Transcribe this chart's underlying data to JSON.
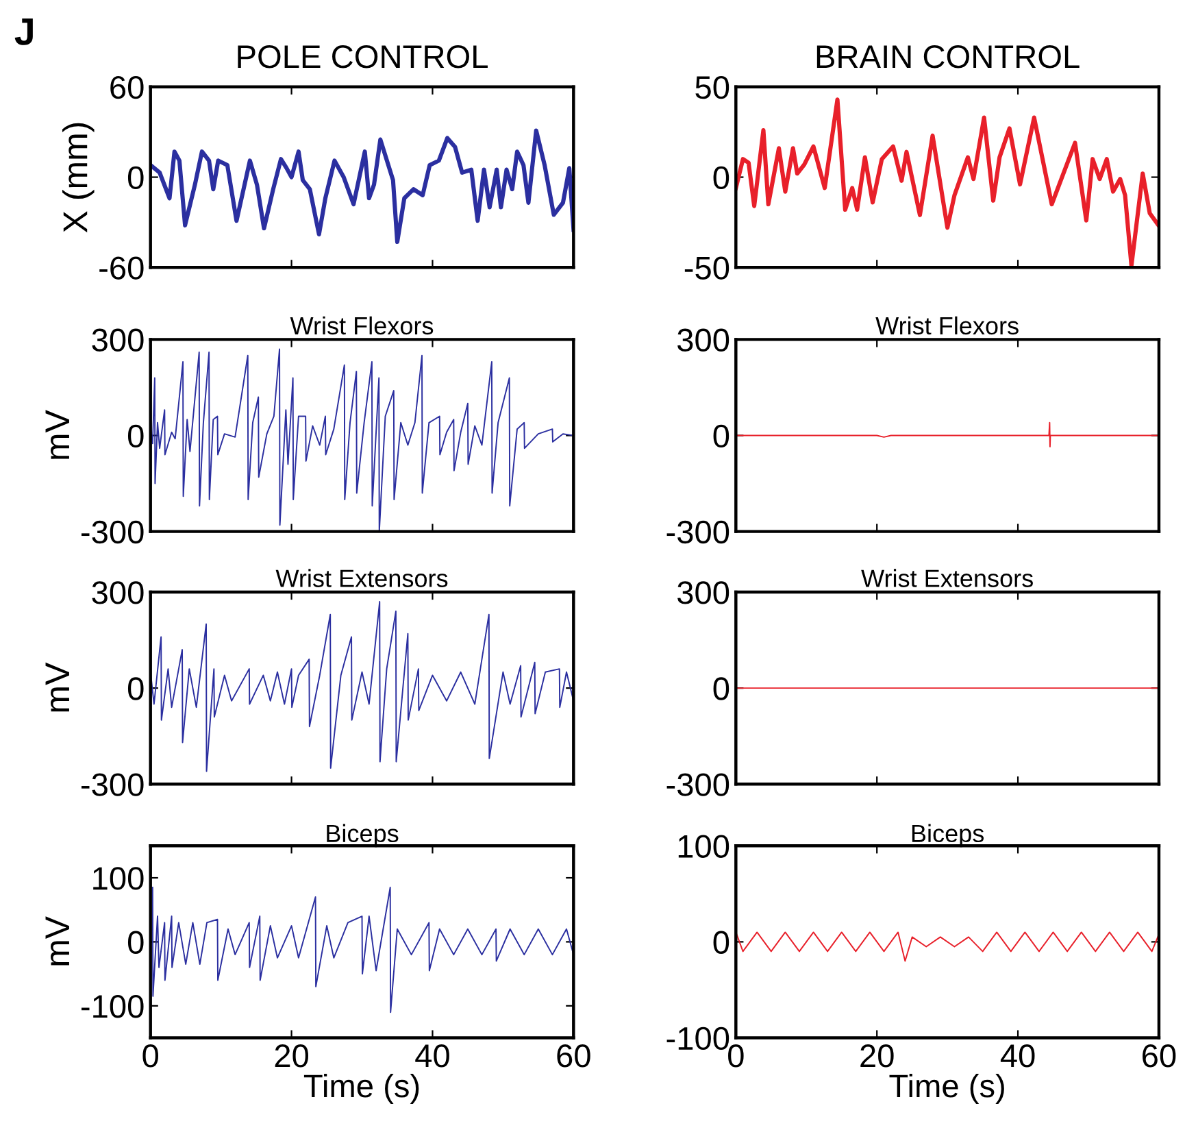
{
  "chart_data": [
    {
      "type": "line",
      "title": "POLE CONTROL",
      "ylabel": "X (mm)",
      "annotations": [
        "J"
      ],
      "xlim": [
        0,
        60
      ],
      "xticks": [
        0,
        20,
        40,
        60
      ],
      "ylim": [
        -60,
        60
      ],
      "yticks": [
        -60,
        0,
        60
      ],
      "tick_labels": "y",
      "grid": false,
      "legend": false,
      "series": [
        {
          "color": "#2b2fa0",
          "x": [
            0,
            1.3,
            2.7,
            3.4,
            4.1,
            4.9,
            6.3,
            7.3,
            8.3,
            8.9,
            9.6,
            10.9,
            12.2,
            14.1,
            15.1,
            16.1,
            17.4,
            18.5,
            19.3,
            20.0,
            21.0,
            21.6,
            22.6,
            23.9,
            24.8,
            26.1,
            27.4,
            28.8,
            30.4,
            31.0,
            31.7,
            32.6,
            34.4,
            35.0,
            36.0,
            37.3,
            38.6,
            39.6,
            40.9,
            42.1,
            43.2,
            44.2,
            45.5,
            46.4,
            47.3,
            48.1,
            49.1,
            49.7,
            50.5,
            51.3,
            52.0,
            52.9,
            53.6,
            54.7,
            55.9,
            57.2,
            58.5,
            59.4,
            60
          ],
          "values": [
            8,
            3,
            -14,
            17,
            11,
            -32,
            -5,
            17,
            11,
            -8,
            11,
            8,
            -29,
            11,
            -5,
            -34,
            -8,
            12,
            6,
            0,
            17,
            -2,
            -8,
            -38,
            -14,
            11,
            0,
            -18,
            17,
            -14,
            -5,
            25,
            -2,
            -43,
            -14,
            -8,
            -12,
            8,
            11,
            26,
            20,
            3,
            5,
            -29,
            5,
            -20,
            5,
            -20,
            5,
            -8,
            17,
            8,
            -17,
            31,
            8,
            -25,
            -17,
            6,
            -35
          ]
        }
      ]
    },
    {
      "type": "line",
      "title": "BRAIN CONTROL",
      "xlim": [
        0,
        60
      ],
      "xticks": [
        0,
        20,
        40,
        60
      ],
      "ylim": [
        -50,
        50
      ],
      "yticks": [
        -50,
        0,
        50
      ],
      "tick_labels": "y",
      "grid": false,
      "legend": false,
      "series": [
        {
          "color": "#e8202a",
          "x": [
            0,
            1,
            1.8,
            2.6,
            3.9,
            4.6,
            6.1,
            7,
            8.1,
            8.7,
            9.7,
            11,
            12.6,
            14.4,
            15.5,
            16.5,
            17.2,
            18.3,
            19.4,
            20.7,
            22.3,
            23.5,
            24.2,
            26.1,
            27.9,
            30,
            31,
            32.9,
            33.7,
            35.2,
            36.5,
            37.4,
            38.8,
            40.3,
            42.3,
            44.8,
            48.1,
            49.7,
            50.6,
            51.6,
            52.6,
            53.5,
            54.5,
            55.2,
            56.1,
            57.7,
            58.7,
            60
          ],
          "values": [
            -6,
            10,
            8,
            -16,
            26,
            -15,
            16,
            -8,
            16,
            2,
            7,
            17,
            -6,
            43,
            -18,
            -6,
            -18,
            11,
            -14,
            10,
            17,
            -2,
            14,
            -21,
            23,
            -28,
            -10,
            11,
            -1,
            33,
            -13,
            11,
            27,
            -4,
            33,
            -15,
            19,
            -24,
            10,
            -1,
            10,
            -8,
            -1,
            -10,
            -49,
            2,
            -20,
            -27
          ]
        }
      ]
    },
    {
      "type": "line",
      "title": "Wrist Flexors",
      "ylabel": "mV",
      "xlim": [
        0,
        60
      ],
      "xticks": [
        0,
        20,
        40,
        60
      ],
      "ylim": [
        -300,
        300
      ],
      "yticks": [
        -300,
        0,
        300
      ],
      "tick_labels": "y",
      "grid": false,
      "legend": false,
      "series": [
        {
          "color": "#2b2fa0",
          "x": [
            0,
            0.3,
            0.6,
            0.65,
            1,
            1.3,
            2,
            2.05,
            3,
            3.5,
            4.6,
            4.65,
            5.2,
            5.6,
            6.9,
            6.95,
            7.5,
            8.3,
            8.35,
            8.9,
            9.5,
            9.55,
            10.5,
            12,
            13.8,
            13.85,
            14.5,
            15.3,
            15.35,
            16.5,
            17.5,
            18.3,
            18.35,
            19.2,
            19.5,
            20.2,
            20.25,
            21,
            22,
            22.05,
            23,
            24,
            24.8,
            24.85,
            26,
            27.5,
            27.55,
            28.3,
            29.2,
            29.25,
            30.3,
            31.4,
            31.45,
            32.4,
            32.45,
            33.3,
            34.5,
            34.55,
            35.5,
            36.5,
            37.5,
            38.5,
            38.55,
            39.5,
            41,
            41.05,
            42,
            43,
            43.05,
            44,
            45,
            45.05,
            46,
            47,
            48.4,
            48.45,
            49.3,
            50.9,
            50.95,
            52,
            53,
            53.05,
            55,
            57,
            57.05,
            58.5,
            60
          ],
          "values": [
            20,
            -25,
            180,
            -150,
            40,
            -40,
            80,
            -60,
            10,
            -10,
            230,
            -190,
            50,
            -50,
            260,
            -220,
            40,
            260,
            -200,
            50,
            60,
            -60,
            5,
            -5,
            250,
            -200,
            40,
            120,
            -130,
            5,
            60,
            270,
            -280,
            80,
            -90,
            180,
            -200,
            60,
            60,
            -80,
            30,
            -30,
            60,
            -60,
            20,
            220,
            -200,
            40,
            200,
            -180,
            40,
            230,
            -220,
            180,
            -300,
            60,
            140,
            -200,
            40,
            -30,
            40,
            250,
            -180,
            40,
            60,
            -60,
            10,
            50,
            -110,
            10,
            100,
            -90,
            30,
            -30,
            230,
            -180,
            40,
            180,
            -220,
            20,
            40,
            -40,
            5,
            20,
            -20,
            5,
            0
          ]
        }
      ]
    },
    {
      "type": "line",
      "title": "Wrist Flexors",
      "xlim": [
        0,
        60
      ],
      "xticks": [
        0,
        20,
        40,
        60
      ],
      "ylim": [
        -300,
        300
      ],
      "yticks": [
        -300,
        0,
        300
      ],
      "tick_labels": "y",
      "grid": false,
      "legend": false,
      "series": [
        {
          "color": "#e8202a",
          "x": [
            0,
            20,
            21,
            22,
            44.4,
            44.5,
            44.55,
            44.6,
            60
          ],
          "values": [
            0,
            0,
            -5,
            0,
            0,
            40,
            -35,
            0,
            0
          ]
        }
      ]
    },
    {
      "type": "line",
      "title": "Wrist Extensors",
      "ylabel": "mV",
      "xlim": [
        0,
        60
      ],
      "xticks": [
        0,
        20,
        40,
        60
      ],
      "ylim": [
        -300,
        300
      ],
      "yticks": [
        -300,
        0,
        300
      ],
      "tick_labels": "y",
      "grid": false,
      "legend": false,
      "series": [
        {
          "color": "#2b2fa0",
          "x": [
            0,
            0.5,
            1.5,
            1.55,
            2.5,
            3,
            4.5,
            4.55,
            5.5,
            6.5,
            7.9,
            7.95,
            9,
            9.05,
            10.5,
            11.5,
            14,
            14.05,
            16,
            17,
            18,
            19,
            20,
            20.05,
            21,
            22.5,
            22.55,
            24,
            25.5,
            25.55,
            27,
            28.5,
            28.55,
            30,
            31,
            32.5,
            32.55,
            33.5,
            34.8,
            34.85,
            36.5,
            36.55,
            38,
            38.05,
            40,
            42,
            44,
            46,
            48,
            48.05,
            50,
            51,
            52.5,
            52.55,
            54.5,
            54.55,
            56,
            58,
            58.05,
            59,
            60
          ],
          "values": [
            50,
            -50,
            160,
            -100,
            60,
            -60,
            120,
            -170,
            60,
            -60,
            200,
            -260,
            60,
            -90,
            40,
            -40,
            60,
            -50,
            40,
            -40,
            50,
            -50,
            60,
            -60,
            40,
            90,
            -120,
            40,
            230,
            -250,
            40,
            160,
            -100,
            50,
            -50,
            270,
            -230,
            60,
            240,
            -230,
            170,
            -100,
            60,
            -70,
            40,
            -40,
            50,
            -50,
            230,
            -220,
            50,
            -50,
            70,
            -90,
            80,
            -80,
            50,
            60,
            -60,
            50,
            -40
          ]
        }
      ]
    },
    {
      "type": "line",
      "title": "Wrist Extensors",
      "xlim": [
        0,
        60
      ],
      "xticks": [
        0,
        20,
        40,
        60
      ],
      "ylim": [
        -300,
        300
      ],
      "yticks": [
        -300,
        0,
        300
      ],
      "tick_labels": "y",
      "grid": false,
      "legend": false,
      "series": [
        {
          "color": "#e8202a",
          "x": [
            0,
            60
          ],
          "values": [
            0,
            0
          ]
        }
      ]
    },
    {
      "type": "line",
      "title": "Biceps",
      "ylabel": "mV",
      "xlabel": "Time (s)",
      "xlim": [
        0,
        60
      ],
      "xticks": [
        0,
        20,
        40,
        60
      ],
      "ylim": [
        -150,
        150
      ],
      "yticks": [
        -100,
        0,
        100
      ],
      "grid": false,
      "legend": false,
      "series": [
        {
          "color": "#2b2fa0",
          "x": [
            0.3,
            0.35,
            1,
            1.2,
            2,
            2.05,
            3,
            3.05,
            4,
            5,
            6,
            7,
            8,
            9.5,
            9.55,
            11,
            12,
            14,
            14.05,
            15.5,
            15.55,
            17,
            18,
            20,
            21,
            23.4,
            23.45,
            25,
            26,
            28,
            30,
            30.05,
            31,
            32,
            34,
            34.05,
            35,
            37,
            39.5,
            39.55,
            41,
            43,
            45,
            47,
            49,
            49.05,
            51,
            53,
            55,
            57,
            59,
            60
          ],
          "values": [
            85,
            -85,
            40,
            -40,
            30,
            -60,
            40,
            -40,
            30,
            -35,
            30,
            -35,
            30,
            35,
            -60,
            20,
            -20,
            30,
            -40,
            40,
            -60,
            25,
            -25,
            25,
            -25,
            70,
            -70,
            25,
            -25,
            30,
            40,
            -50,
            40,
            -45,
            85,
            -110,
            20,
            -20,
            30,
            -45,
            20,
            -20,
            20,
            -20,
            20,
            -30,
            20,
            -20,
            20,
            -20,
            20,
            -20
          ]
        }
      ]
    },
    {
      "type": "line",
      "title": "Biceps",
      "xlabel": "Time (s)",
      "xlim": [
        0,
        60
      ],
      "xticks": [
        0,
        20,
        40,
        60
      ],
      "ylim": [
        -100,
        100
      ],
      "yticks": [
        -100,
        0,
        100
      ],
      "grid": false,
      "legend": false,
      "series": [
        {
          "color": "#e8202a",
          "x": [
            0,
            1,
            3,
            5,
            7,
            9,
            11,
            13,
            15,
            17,
            19,
            21,
            23,
            24,
            25,
            27,
            29,
            31,
            33,
            35,
            37,
            39,
            41,
            43,
            45,
            47,
            49,
            51,
            53,
            55,
            57,
            59,
            60
          ],
          "values": [
            10,
            -10,
            10,
            -10,
            10,
            -10,
            10,
            -10,
            10,
            -10,
            10,
            -10,
            10,
            -20,
            5,
            -5,
            5,
            -5,
            5,
            -10,
            10,
            -10,
            10,
            -10,
            10,
            -10,
            10,
            -10,
            10,
            -10,
            10,
            -10,
            8
          ]
        }
      ]
    }
  ]
}
